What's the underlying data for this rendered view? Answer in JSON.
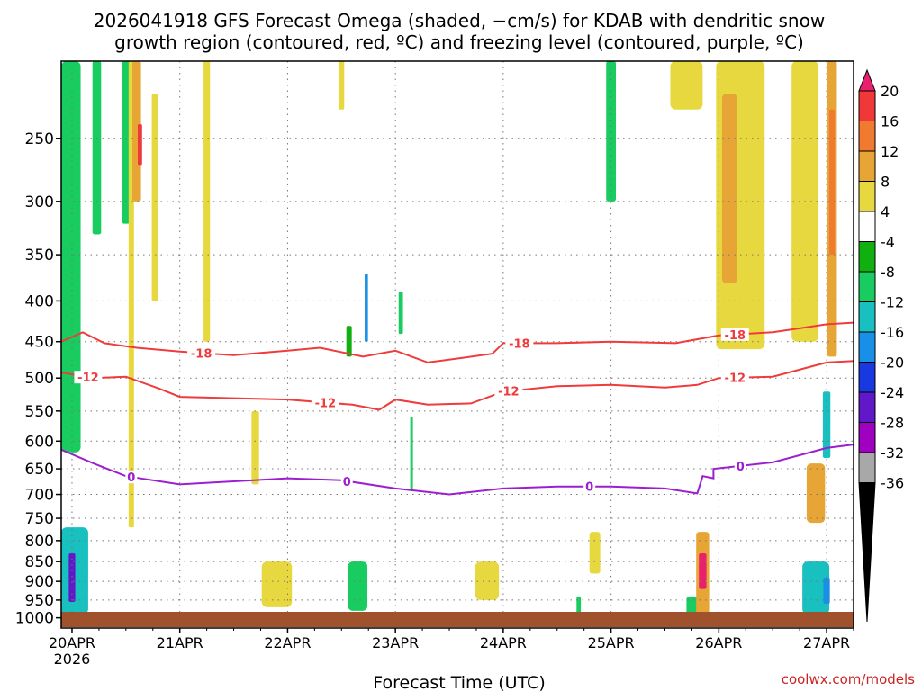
{
  "chart_data": {
    "type": "heatmap",
    "title_line1": "2026041918 GFS Forecast Omega (shaded, −cm/s) for KDAB with dendritic snow",
    "title_line2": "growth region (contoured, red, ºC) and freezing level (contoured, purple, ºC)",
    "xlabel": "Forecast Time (UTC)",
    "credit": "coolwx.com/models",
    "x_day_range": [
      19.9,
      27.25
    ],
    "pressure_levels": [
      250,
      300,
      350,
      400,
      450,
      500,
      550,
      600,
      650,
      700,
      750,
      800,
      850,
      900,
      950,
      1000
    ],
    "y_ticks": [
      "250",
      "300",
      "350",
      "400",
      "450",
      "500",
      "550",
      "600",
      "650",
      "700",
      "750",
      "800",
      "850",
      "900",
      "950",
      "1000"
    ],
    "x_ticks": [
      {
        "day": 20,
        "label": "20APR",
        "sub": "2026"
      },
      {
        "day": 21,
        "label": "21APR",
        "sub": ""
      },
      {
        "day": 22,
        "label": "22APR",
        "sub": ""
      },
      {
        "day": 23,
        "label": "23APR",
        "sub": ""
      },
      {
        "day": 24,
        "label": "24APR",
        "sub": ""
      },
      {
        "day": 25,
        "label": "25APR",
        "sub": ""
      },
      {
        "day": 26,
        "label": "26APR",
        "sub": ""
      },
      {
        "day": 27,
        "label": "27APR",
        "sub": ""
      }
    ],
    "colorbar": {
      "labels": [
        "20",
        "16",
        "12",
        "8",
        "4",
        "-4",
        "-8",
        "-12",
        "-16",
        "-20",
        "-24",
        "-28",
        "-32",
        "-36"
      ],
      "colors": [
        "#e8206e",
        "#f03838",
        "#ef7a30",
        "#e6a535",
        "#e8d840",
        "#ffffff",
        "#10b010",
        "#18cc60",
        "#18c0c0",
        "#1890e8",
        "#1838e0",
        "#6018c8",
        "#a000c0",
        "#a8a8a8",
        "#000000"
      ]
    },
    "series": [
      {
        "name": "-18",
        "color": "#ef3b3b",
        "label_text": "-18",
        "label_days": [
          21.2,
          24.15,
          26.15
        ],
        "points": [
          [
            19.9,
            450
          ],
          [
            20.1,
            438
          ],
          [
            20.3,
            452
          ],
          [
            20.6,
            458
          ],
          [
            21.0,
            463
          ],
          [
            21.5,
            468
          ],
          [
            22.0,
            462
          ],
          [
            22.3,
            458
          ],
          [
            22.7,
            470
          ],
          [
            23.0,
            462
          ],
          [
            23.3,
            478
          ],
          [
            23.6,
            472
          ],
          [
            23.9,
            466
          ],
          [
            24.0,
            452
          ],
          [
            24.5,
            452
          ],
          [
            25.0,
            450
          ],
          [
            25.6,
            452
          ],
          [
            26.0,
            442
          ],
          [
            26.5,
            438
          ],
          [
            27.0,
            428
          ],
          [
            27.25,
            426
          ]
        ]
      },
      {
        "name": "-12",
        "color": "#ef3b3b",
        "label_text": "-12",
        "label_days": [
          20.15,
          22.35,
          24.05,
          26.15
        ],
        "points": [
          [
            19.9,
            492
          ],
          [
            20.2,
            500
          ],
          [
            20.5,
            498
          ],
          [
            20.8,
            515
          ],
          [
            21.0,
            528
          ],
          [
            21.5,
            530
          ],
          [
            22.0,
            532
          ],
          [
            22.6,
            540
          ],
          [
            22.85,
            548
          ],
          [
            23.0,
            532
          ],
          [
            23.3,
            540
          ],
          [
            23.7,
            538
          ],
          [
            24.0,
            520
          ],
          [
            24.5,
            512
          ],
          [
            25.0,
            510
          ],
          [
            25.5,
            514
          ],
          [
            25.8,
            510
          ],
          [
            26.0,
            500
          ],
          [
            26.5,
            498
          ],
          [
            27.0,
            478
          ],
          [
            27.25,
            476
          ]
        ]
      },
      {
        "name": "0",
        "color": "#9b1fcf",
        "label_text": "0",
        "label_days": [
          20.55,
          22.55,
          24.8,
          26.2
        ],
        "points": [
          [
            19.9,
            615
          ],
          [
            20.2,
            640
          ],
          [
            20.5,
            664
          ],
          [
            21.0,
            680
          ],
          [
            21.5,
            674
          ],
          [
            22.0,
            668
          ],
          [
            22.5,
            672
          ],
          [
            23.0,
            688
          ],
          [
            23.5,
            700
          ],
          [
            24.0,
            688
          ],
          [
            24.5,
            684
          ],
          [
            25.0,
            684
          ],
          [
            25.5,
            688
          ],
          [
            25.8,
            698
          ],
          [
            25.85,
            664
          ],
          [
            25.95,
            668
          ],
          [
            25.95,
            650
          ],
          [
            26.5,
            638
          ],
          [
            27.0,
            612
          ],
          [
            27.25,
            606
          ]
        ]
      }
    ],
    "omega_patches": [
      {
        "day": 20.0,
        "p_top": 770,
        "p_bot": 990,
        "width_days": 0.3,
        "value": -14
      },
      {
        "day": 20.0,
        "p_top": 830,
        "p_bot": 955,
        "width_days": 0.06,
        "value": -26
      },
      {
        "day": 19.98,
        "p_top": 120,
        "p_bot": 620,
        "width_days": 0.2,
        "value": -10
      },
      {
        "day": 20.23,
        "p_top": 100,
        "p_bot": 330,
        "width_days": 0.08,
        "value": -8
      },
      {
        "day": 20.5,
        "p_top": 150,
        "p_bot": 320,
        "width_days": 0.07,
        "value": -10
      },
      {
        "day": 20.55,
        "p_top": 60,
        "p_bot": 770,
        "width_days": 0.05,
        "value": 5
      },
      {
        "day": 20.6,
        "p_top": 190,
        "p_bot": 300,
        "width_days": 0.08,
        "value": 10
      },
      {
        "day": 20.63,
        "p_top": 240,
        "p_bot": 270,
        "width_days": 0.04,
        "value": 17
      },
      {
        "day": 20.77,
        "p_top": 220,
        "p_bot": 400,
        "width_days": 0.06,
        "value": 4
      },
      {
        "day": 21.25,
        "p_top": 100,
        "p_bot": 450,
        "width_days": 0.06,
        "value": 5
      },
      {
        "day": 21.7,
        "p_top": 550,
        "p_bot": 680,
        "width_days": 0.07,
        "value": 5
      },
      {
        "day": 21.9,
        "p_top": 850,
        "p_bot": 970,
        "width_days": 0.28,
        "value": 5
      },
      {
        "day": 22.5,
        "p_top": 130,
        "p_bot": 230,
        "width_days": 0.05,
        "value": 5
      },
      {
        "day": 22.57,
        "p_top": 430,
        "p_bot": 470,
        "width_days": 0.05,
        "value": -7
      },
      {
        "day": 22.65,
        "p_top": 850,
        "p_bot": 980,
        "width_days": 0.18,
        "value": -8
      },
      {
        "day": 22.73,
        "p_top": 370,
        "p_bot": 450,
        "width_days": 0.03,
        "value": -18
      },
      {
        "day": 23.05,
        "p_top": 390,
        "p_bot": 440,
        "width_days": 0.04,
        "value": -8
      },
      {
        "day": 23.15,
        "p_top": 560,
        "p_bot": 690,
        "width_days": 0.025,
        "value": -8
      },
      {
        "day": 23.85,
        "p_top": 850,
        "p_bot": 950,
        "width_days": 0.22,
        "value": 5
      },
      {
        "day": 25.0,
        "p_top": 200,
        "p_bot": 300,
        "width_days": 0.09,
        "value": -8
      },
      {
        "day": 24.85,
        "p_top": 780,
        "p_bot": 880,
        "width_days": 0.1,
        "value": 5
      },
      {
        "day": 24.7,
        "p_top": 940,
        "p_bot": 990,
        "width_days": 0.04,
        "value": -8
      },
      {
        "day": 25.7,
        "p_top": 60,
        "p_bot": 230,
        "width_days": 0.3,
        "value": 6
      },
      {
        "day": 25.75,
        "p_top": 940,
        "p_bot": 990,
        "width_days": 0.1,
        "value": -8
      },
      {
        "day": 25.85,
        "p_top": 780,
        "p_bot": 990,
        "width_days": 0.12,
        "value": 9
      },
      {
        "day": 25.85,
        "p_top": 830,
        "p_bot": 920,
        "width_days": 0.07,
        "value": 20
      },
      {
        "day": 26.2,
        "p_top": 200,
        "p_bot": 460,
        "width_days": 0.45,
        "value": 5
      },
      {
        "day": 26.1,
        "p_top": 220,
        "p_bot": 380,
        "width_days": 0.14,
        "value": 9
      },
      {
        "day": 26.8,
        "p_top": 90,
        "p_bot": 450,
        "width_days": 0.25,
        "value": 5
      },
      {
        "day": 27.05,
        "p_top": 150,
        "p_bot": 470,
        "width_days": 0.09,
        "value": 10
      },
      {
        "day": 27.05,
        "p_top": 230,
        "p_bot": 350,
        "width_days": 0.05,
        "value": 14
      },
      {
        "day": 26.9,
        "p_top": 640,
        "p_bot": 760,
        "width_days": 0.17,
        "value": 8
      },
      {
        "day": 26.9,
        "p_top": 850,
        "p_bot": 990,
        "width_days": 0.25,
        "value": -12
      },
      {
        "day": 27.0,
        "p_top": 520,
        "p_bot": 630,
        "width_days": 0.07,
        "value": -14
      },
      {
        "day": 27.0,
        "p_top": 890,
        "p_bot": 960,
        "width_days": 0.06,
        "value": -16
      }
    ]
  }
}
